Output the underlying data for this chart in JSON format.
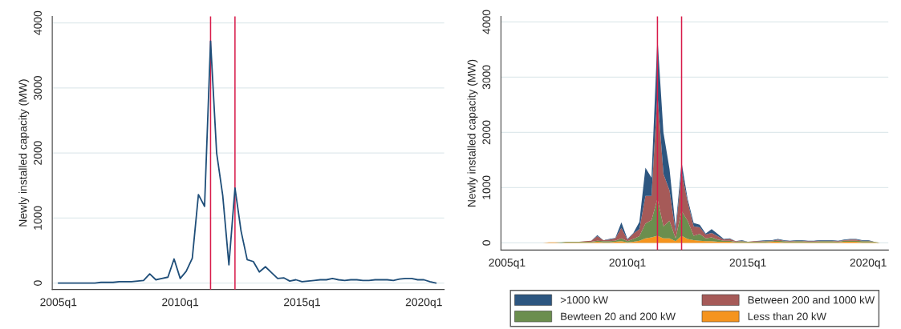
{
  "chart_data": [
    {
      "type": "line",
      "ylabel": "Newly installed capacity (MW)",
      "x": [
        "2005-01",
        "2005-04",
        "2005-07",
        "2005-10",
        "2006-01",
        "2006-04",
        "2006-07",
        "2006-10",
        "2007-01",
        "2007-04",
        "2007-07",
        "2007-10",
        "2008-01",
        "2008-04",
        "2008-07",
        "2008-10",
        "2009-01",
        "2009-04",
        "2009-07",
        "2009-10",
        "2010-01",
        "2010-04",
        "2010-07",
        "2010-10",
        "2011-01",
        "2011-04",
        "2011-07",
        "2011-10",
        "2012-01",
        "2012-04",
        "2012-07",
        "2012-10",
        "2013-01",
        "2013-04",
        "2013-07",
        "2013-10",
        "2014-01",
        "2014-04",
        "2014-07",
        "2014-10",
        "2015-01",
        "2015-04",
        "2015-07",
        "2015-10",
        "2016-01",
        "2016-04",
        "2016-07",
        "2016-10",
        "2017-01",
        "2017-04",
        "2017-07",
        "2017-10",
        "2018-01",
        "2018-04",
        "2018-07",
        "2018-10",
        "2019-01",
        "2019-04",
        "2019-07",
        "2019-10",
        "2020-01",
        "2020-04",
        "2020-07"
      ],
      "series": [
        {
          "color": "#1f4e79",
          "values": [
            0,
            0,
            0,
            0,
            0,
            0,
            0,
            10,
            10,
            10,
            20,
            20,
            20,
            30,
            40,
            140,
            50,
            70,
            90,
            370,
            70,
            180,
            380,
            1360,
            1180,
            3720,
            2000,
            1340,
            280,
            1460,
            800,
            360,
            330,
            170,
            250,
            160,
            70,
            80,
            30,
            50,
            20,
            30,
            40,
            50,
            50,
            70,
            50,
            40,
            50,
            50,
            40,
            40,
            50,
            50,
            50,
            40,
            60,
            70,
            70,
            50,
            50,
            20,
            0
          ]
        }
      ],
      "xlim": [
        "2004-10-01",
        "2020-11-01"
      ],
      "xticks": [
        {
          "value": "2005-01",
          "label": "2005q1"
        },
        {
          "value": "2010-01",
          "label": "2010q1"
        },
        {
          "value": "2015-01",
          "label": "2015q1"
        },
        {
          "value": "2020-01",
          "label": "2020q1"
        }
      ],
      "ylim": [
        -100,
        4100
      ],
      "yticks": [
        0,
        1000,
        2000,
        3000,
        4000
      ],
      "grid": "y",
      "legend": false,
      "ref_lines": [
        {
          "axis": "x",
          "value": "2011-04",
          "color": "#d81b4a"
        },
        {
          "axis": "x",
          "value": "2012-04",
          "color": "#d81b4a"
        }
      ]
    },
    {
      "type": "area",
      "stacked": true,
      "ylabel": "Newly installed capacity (MW)",
      "x": [
        "2005-01",
        "2005-04",
        "2005-07",
        "2005-10",
        "2006-01",
        "2006-04",
        "2006-07",
        "2006-10",
        "2007-01",
        "2007-04",
        "2007-07",
        "2007-10",
        "2008-01",
        "2008-04",
        "2008-07",
        "2008-10",
        "2009-01",
        "2009-04",
        "2009-07",
        "2009-10",
        "2010-01",
        "2010-04",
        "2010-07",
        "2010-10",
        "2011-01",
        "2011-04",
        "2011-07",
        "2011-10",
        "2012-01",
        "2012-04",
        "2012-07",
        "2012-10",
        "2013-01",
        "2013-04",
        "2013-07",
        "2013-10",
        "2014-01",
        "2014-04",
        "2014-07",
        "2014-10",
        "2015-01",
        "2015-04",
        "2015-07",
        "2015-10",
        "2016-01",
        "2016-04",
        "2016-07",
        "2016-10",
        "2017-01",
        "2017-04",
        "2017-07",
        "2017-10",
        "2018-01",
        "2018-04",
        "2018-07",
        "2018-10",
        "2019-01",
        "2019-04",
        "2019-07",
        "2019-10",
        "2020-01",
        "2020-04",
        "2020-07"
      ],
      "series": [
        {
          "name": "Less than 20 kW",
          "color": "#f5941e",
          "values": [
            0,
            0,
            0,
            0,
            0,
            0,
            0,
            10,
            10,
            0,
            10,
            10,
            10,
            10,
            10,
            20,
            10,
            10,
            20,
            30,
            10,
            20,
            40,
            80,
            100,
            130,
            80,
            80,
            30,
            130,
            70,
            50,
            40,
            30,
            30,
            20,
            20,
            20,
            10,
            10,
            10,
            10,
            10,
            10,
            20,
            20,
            10,
            10,
            10,
            10,
            10,
            10,
            10,
            10,
            10,
            10,
            20,
            20,
            20,
            10,
            10,
            10,
            0
          ]
        },
        {
          "name": "Bewteen 20 and 200 kW",
          "color": "#6b8e4e",
          "values": [
            0,
            0,
            0,
            0,
            0,
            0,
            0,
            0,
            0,
            10,
            10,
            10,
            10,
            10,
            10,
            20,
            20,
            20,
            20,
            50,
            20,
            50,
            80,
            270,
            310,
            670,
            220,
            320,
            50,
            450,
            330,
            80,
            120,
            50,
            70,
            40,
            20,
            20,
            10,
            20,
            10,
            10,
            10,
            20,
            10,
            20,
            20,
            10,
            20,
            20,
            10,
            10,
            20,
            20,
            20,
            10,
            20,
            20,
            20,
            20,
            20,
            10,
            0
          ]
        },
        {
          "name": "Between 200 and 1000 kW",
          "color": "#a65a58",
          "values": [
            0,
            0,
            0,
            0,
            0,
            0,
            0,
            0,
            0,
            0,
            0,
            0,
            0,
            10,
            20,
            80,
            20,
            30,
            40,
            190,
            30,
            100,
            130,
            500,
            440,
            1900,
            950,
            550,
            120,
            720,
            350,
            170,
            120,
            70,
            80,
            60,
            20,
            30,
            10,
            10,
            0,
            10,
            10,
            10,
            10,
            20,
            10,
            10,
            10,
            10,
            10,
            10,
            10,
            10,
            10,
            10,
            10,
            20,
            20,
            10,
            10,
            0,
            0
          ]
        },
        {
          "name": ">1000 kW",
          "color": "#2d5680",
          "values": [
            0,
            0,
            0,
            0,
            0,
            0,
            0,
            0,
            0,
            0,
            0,
            0,
            0,
            0,
            0,
            20,
            0,
            10,
            10,
            100,
            10,
            10,
            130,
            510,
            330,
            1020,
            750,
            390,
            80,
            160,
            50,
            60,
            50,
            20,
            70,
            40,
            10,
            10,
            0,
            10,
            0,
            0,
            10,
            10,
            10,
            10,
            10,
            10,
            10,
            10,
            10,
            10,
            10,
            10,
            10,
            10,
            10,
            10,
            10,
            10,
            10,
            0,
            0
          ]
        }
      ],
      "xlim": [
        "2004-10-01",
        "2020-11-01"
      ],
      "xticks": [
        {
          "value": "2005-01",
          "label": "2005q1"
        },
        {
          "value": "2010-01",
          "label": "2010q1"
        },
        {
          "value": "2015-01",
          "label": "2015q1"
        },
        {
          "value": "2020-01",
          "label": "2020q1"
        }
      ],
      "ylim": [
        -130,
        4100
      ],
      "yticks": [
        0,
        1000,
        2000,
        3000,
        4000
      ],
      "grid": "y",
      "legend": "bottom",
      "ref_lines": [
        {
          "axis": "x",
          "value": "2011-04",
          "color": "#d81b4a"
        },
        {
          "axis": "x",
          "value": "2012-04",
          "color": "#d81b4a"
        }
      ]
    }
  ]
}
